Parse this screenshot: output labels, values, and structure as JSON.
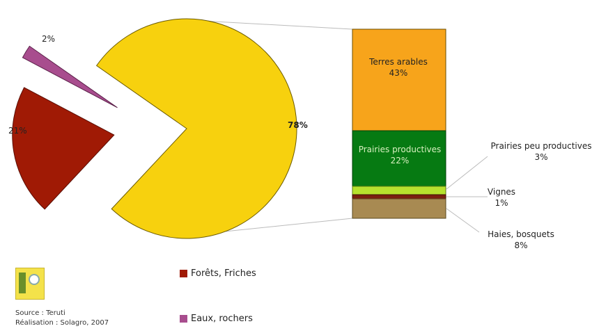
{
  "chart_data": {
    "type": "pie",
    "pie": {
      "slices": [
        {
          "label": "78%",
          "value": 78,
          "color": "#f7d10e",
          "legend_ref": "exploded_to_bar"
        },
        {
          "label": "21%",
          "value": 21,
          "color": "#a01a05",
          "legend_ref": "Forêts, Friches"
        },
        {
          "label": "2%",
          "value": 2,
          "color": "#a84d8e",
          "legend_ref": "Eaux, rochers"
        }
      ]
    },
    "bar": {
      "segments": [
        {
          "name": "Terres arables",
          "value_label": "43%",
          "color": "#f7a41b"
        },
        {
          "name": "Prairies productives",
          "value_label": "22%",
          "color": "#067a12"
        },
        {
          "name": "Prairies peu productives",
          "value_label": "3%",
          "color": "#b6e22e"
        },
        {
          "name": "Vignes",
          "value_label": "1%",
          "color": "#7a2010"
        },
        {
          "name": "Haies, bosquets",
          "value_label": "8%",
          "color": "#a88a52"
        }
      ]
    },
    "legend": [
      {
        "label": "Forêts, Friches",
        "color": "#a01a05"
      },
      {
        "label": "Eaux, rochers",
        "color": "#a84d8e"
      }
    ]
  },
  "footer": {
    "source": "Source : Teruti",
    "realisation": "Réalisation : Solagro, 2007"
  }
}
